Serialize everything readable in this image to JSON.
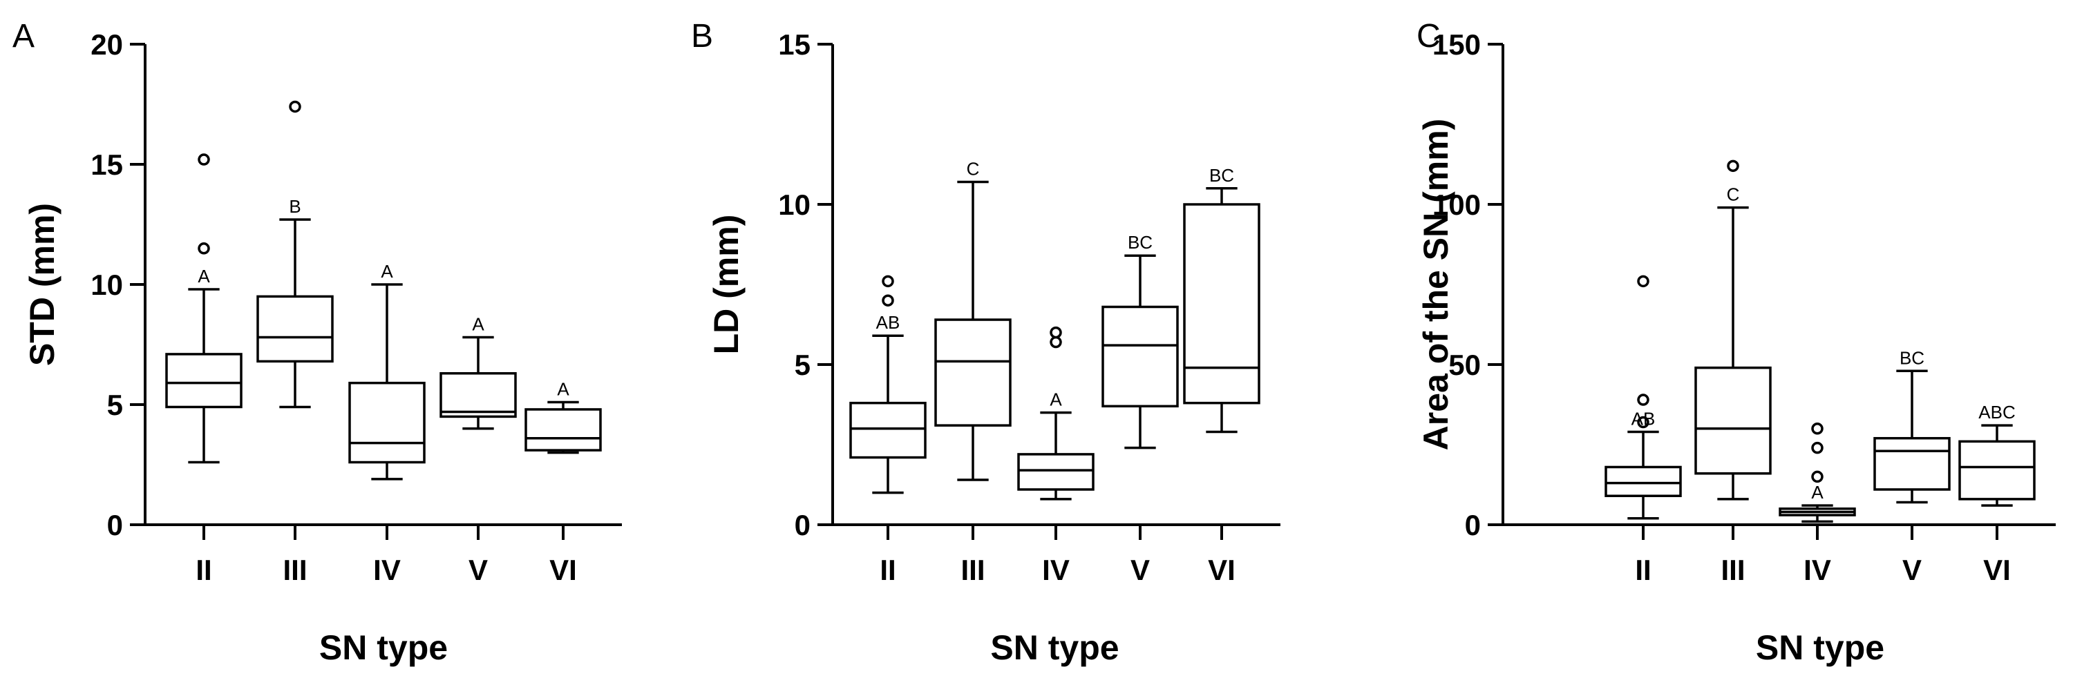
{
  "chart_data": [
    {
      "panel": "A",
      "type": "box",
      "ylabel": "STD (mm)",
      "xlabel": "SN type",
      "ylim": [
        0,
        20
      ],
      "yticks": [
        0,
        5,
        10,
        15,
        20
      ],
      "categories": [
        "II",
        "III",
        "IV",
        "V",
        "VI"
      ],
      "boxes": [
        {
          "min": 2.6,
          "q1": 4.9,
          "median": 5.9,
          "q3": 7.1,
          "max": 9.8,
          "outliers": [
            11.5,
            15.2
          ],
          "label": "A"
        },
        {
          "min": 4.9,
          "q1": 6.8,
          "median": 7.8,
          "q3": 9.5,
          "max": 12.7,
          "outliers": [
            17.4
          ],
          "label": "B"
        },
        {
          "min": 1.9,
          "q1": 2.6,
          "median": 3.4,
          "q3": 5.9,
          "max": 10.0,
          "outliers": [],
          "label": "A"
        },
        {
          "min": 4.0,
          "q1": 4.5,
          "median": 4.7,
          "q3": 6.3,
          "max": 7.8,
          "outliers": [],
          "label": "A"
        },
        {
          "min": 3.0,
          "q1": 3.1,
          "median": 3.6,
          "q3": 4.8,
          "max": 5.1,
          "outliers": [],
          "label": "A"
        }
      ]
    },
    {
      "panel": "B",
      "type": "box",
      "ylabel": "LD (mm)",
      "xlabel": "SN type",
      "ylim": [
        0,
        15
      ],
      "yticks": [
        0,
        5,
        10,
        15
      ],
      "categories": [
        "II",
        "III",
        "IV",
        "V",
        "VI"
      ],
      "boxes": [
        {
          "min": 1.0,
          "q1": 2.1,
          "median": 3.0,
          "q3": 3.8,
          "max": 5.9,
          "outliers": [
            7.0,
            7.6
          ],
          "label": "AB"
        },
        {
          "min": 1.4,
          "q1": 3.1,
          "median": 5.1,
          "q3": 6.4,
          "max": 10.7,
          "outliers": [],
          "label": "C"
        },
        {
          "min": 0.8,
          "q1": 1.1,
          "median": 1.7,
          "q3": 2.2,
          "max": 3.5,
          "outliers": [
            5.7,
            6.0
          ],
          "label": "A"
        },
        {
          "min": 2.4,
          "q1": 3.7,
          "median": 5.6,
          "q3": 6.8,
          "max": 8.4,
          "outliers": [],
          "label": "BC"
        },
        {
          "min": 2.9,
          "q1": 3.8,
          "median": 4.9,
          "q3": 10.0,
          "max": 10.5,
          "outliers": [],
          "label": "BC"
        }
      ]
    },
    {
      "panel": "C",
      "type": "box",
      "ylabel": "Area of the SN (mm)",
      "xlabel": "SN type",
      "ylim": [
        0,
        150
      ],
      "yticks": [
        0,
        50,
        100,
        150
      ],
      "categories": [
        "II",
        "III",
        "IV",
        "V",
        "VI"
      ],
      "boxes": [
        {
          "min": 2,
          "q1": 9,
          "median": 13,
          "q3": 18,
          "max": 29,
          "outliers": [
            32,
            39,
            76
          ],
          "label": "AB"
        },
        {
          "min": 8,
          "q1": 16,
          "median": 30,
          "q3": 49,
          "max": 99,
          "outliers": [
            112
          ],
          "label": "C"
        },
        {
          "min": 1,
          "q1": 3,
          "median": 4,
          "q3": 5,
          "max": 6,
          "outliers": [
            15,
            24,
            30
          ],
          "label": "A"
        },
        {
          "min": 7,
          "q1": 11,
          "median": 23,
          "q3": 27,
          "max": 48,
          "outliers": [],
          "label": "BC"
        },
        {
          "min": 6,
          "q1": 8,
          "median": 18,
          "q3": 26,
          "max": 31,
          "outliers": [],
          "label": "ABC"
        }
      ]
    }
  ]
}
